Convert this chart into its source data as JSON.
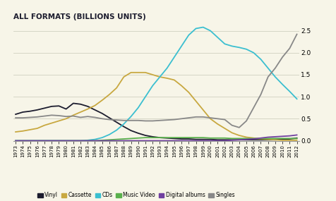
{
  "title": "ALL FORMATS (BILLIONS UNITS)",
  "years": [
    1973,
    1974,
    1975,
    1976,
    1977,
    1978,
    1979,
    1980,
    1981,
    1982,
    1983,
    1984,
    1985,
    1986,
    1987,
    1988,
    1989,
    1990,
    1991,
    1992,
    1993,
    1994,
    1995,
    1996,
    1997,
    1998,
    1999,
    2000,
    2001,
    2002,
    2003,
    2004,
    2005,
    2006,
    2007,
    2008,
    2009,
    2010,
    2011,
    2012
  ],
  "vinyl": [
    0.6,
    0.65,
    0.67,
    0.7,
    0.74,
    0.78,
    0.79,
    0.72,
    0.85,
    0.83,
    0.78,
    0.7,
    0.62,
    0.52,
    0.42,
    0.32,
    0.23,
    0.17,
    0.12,
    0.09,
    0.07,
    0.06,
    0.05,
    0.04,
    0.04,
    0.03,
    0.03,
    0.03,
    0.02,
    0.02,
    0.02,
    0.02,
    0.02,
    0.02,
    0.02,
    0.02,
    0.02,
    0.03,
    0.04,
    0.06
  ],
  "cassette": [
    0.2,
    0.22,
    0.25,
    0.28,
    0.35,
    0.4,
    0.45,
    0.5,
    0.58,
    0.65,
    0.72,
    0.8,
    0.92,
    1.05,
    1.2,
    1.45,
    1.55,
    1.55,
    1.55,
    1.5,
    1.45,
    1.42,
    1.38,
    1.25,
    1.1,
    0.9,
    0.7,
    0.5,
    0.38,
    0.28,
    0.18,
    0.12,
    0.08,
    0.06,
    0.04,
    0.03,
    0.02,
    0.01,
    0.01,
    0.01
  ],
  "cds": [
    0.0,
    0.0,
    0.0,
    0.0,
    0.0,
    0.0,
    0.0,
    0.0,
    0.0,
    0.0,
    0.01,
    0.03,
    0.07,
    0.14,
    0.24,
    0.38,
    0.55,
    0.75,
    1.0,
    1.25,
    1.45,
    1.65,
    1.9,
    2.15,
    2.4,
    2.55,
    2.58,
    2.5,
    2.35,
    2.2,
    2.15,
    2.12,
    2.08,
    2.0,
    1.85,
    1.65,
    1.45,
    1.28,
    1.12,
    0.95
  ],
  "music_video": [
    0.0,
    0.0,
    0.0,
    0.0,
    0.0,
    0.0,
    0.0,
    0.0,
    0.0,
    0.0,
    0.0,
    0.0,
    0.01,
    0.02,
    0.03,
    0.04,
    0.05,
    0.06,
    0.07,
    0.07,
    0.07,
    0.07,
    0.07,
    0.07,
    0.07,
    0.07,
    0.07,
    0.06,
    0.06,
    0.06,
    0.05,
    0.05,
    0.05,
    0.05,
    0.05,
    0.05,
    0.05,
    0.05,
    0.05,
    0.05
  ],
  "digital_albums": [
    0.0,
    0.0,
    0.0,
    0.0,
    0.0,
    0.0,
    0.0,
    0.0,
    0.0,
    0.0,
    0.0,
    0.0,
    0.0,
    0.0,
    0.0,
    0.0,
    0.0,
    0.0,
    0.0,
    0.0,
    0.0,
    0.0,
    0.0,
    0.0,
    0.0,
    0.0,
    0.0,
    0.0,
    0.0,
    0.0,
    0.01,
    0.02,
    0.03,
    0.04,
    0.06,
    0.08,
    0.09,
    0.1,
    0.11,
    0.13
  ],
  "singles": [
    0.52,
    0.52,
    0.53,
    0.54,
    0.56,
    0.58,
    0.57,
    0.55,
    0.56,
    0.53,
    0.55,
    0.53,
    0.5,
    0.48,
    0.47,
    0.46,
    0.46,
    0.46,
    0.45,
    0.45,
    0.46,
    0.47,
    0.48,
    0.5,
    0.52,
    0.54,
    0.54,
    0.52,
    0.5,
    0.48,
    0.35,
    0.3,
    0.45,
    0.75,
    1.05,
    1.45,
    1.65,
    1.9,
    2.1,
    2.42
  ],
  "colors": {
    "vinyl": "#1c1c2e",
    "cassette": "#c8a840",
    "cds": "#3bbfd0",
    "music_video": "#5ab04c",
    "digital_albums": "#7040a0",
    "singles": "#888888"
  },
  "ylim": [
    0,
    2.65
  ],
  "yticks": [
    0,
    0.5,
    1.0,
    1.5,
    2.0,
    2.5
  ],
  "bg_color": "#f7f5e8",
  "grid_color": "#d0d0c0",
  "title_color": "#1c1c2e",
  "legend_labels": [
    "Vinyl",
    "Cassette",
    "CDs",
    "Music Video",
    "Digital albums",
    "Singles"
  ]
}
